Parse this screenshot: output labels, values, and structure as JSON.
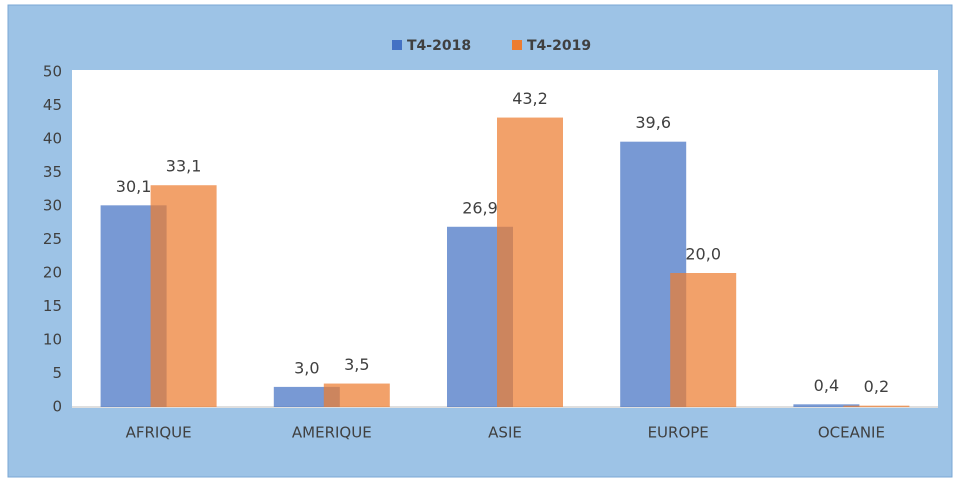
{
  "chart_data": {
    "type": "bar",
    "categories": [
      "AFRIQUE",
      "AMERIQUE",
      "ASIE",
      "EUROPE",
      "OCEANIE"
    ],
    "series": [
      {
        "name": "T4-2018",
        "color": "#4472c4",
        "values": [
          30.1,
          3.0,
          26.9,
          39.6,
          0.4
        ],
        "value_labels": [
          "30,1",
          "3,0",
          "26,9",
          "39,6",
          "0,4"
        ]
      },
      {
        "name": "T4-2019",
        "color": "#ed7d31",
        "values": [
          33.1,
          3.5,
          43.2,
          20.0,
          0.2
        ],
        "value_labels": [
          "33,1",
          "3,5",
          "43,2",
          "20,0",
          "0,2"
        ]
      }
    ],
    "ylim": [
      0,
      50
    ],
    "yticks": [
      0,
      5,
      10,
      15,
      20,
      25,
      30,
      35,
      40,
      45,
      50
    ],
    "legend": "top"
  }
}
